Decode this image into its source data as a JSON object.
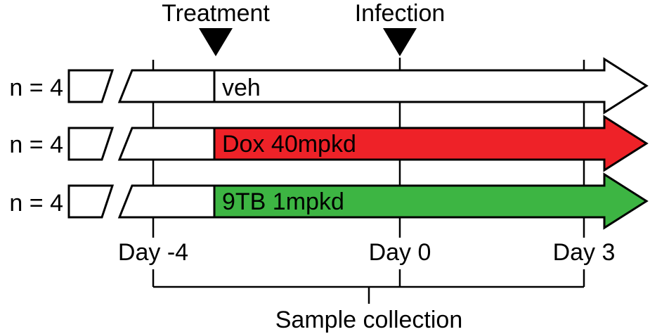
{
  "events": [
    {
      "label": "Treatment",
      "marker_icon": "triangle-down-icon"
    },
    {
      "label": "Infection",
      "marker_icon": "triangle-down-icon"
    }
  ],
  "groups": [
    {
      "n_label": "n = 4",
      "arm_label": "veh",
      "fill": "#ffffff"
    },
    {
      "n_label": "n = 4",
      "arm_label": "Dox 40mpkd",
      "fill": "#ee2228"
    },
    {
      "n_label": "n = 4",
      "arm_label": "9TB 1mpkd",
      "fill": "#3db543"
    }
  ],
  "days": [
    "Day -4",
    "Day 0",
    "Day 3"
  ],
  "sample_collection_label": "Sample collection",
  "colors": {
    "line": "#000000",
    "veh": "#ffffff",
    "dox": "#ee2228",
    "tb": "#3db543"
  }
}
